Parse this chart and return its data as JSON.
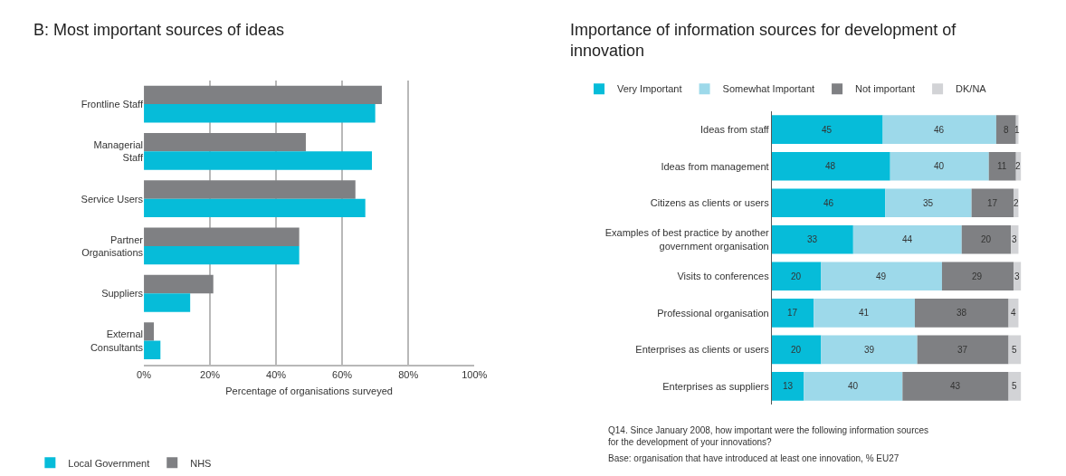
{
  "chart_data": [
    {
      "type": "bar",
      "orientation": "horizontal",
      "title": "B: Most important sources of ideas",
      "categories": [
        "Frontline Staff",
        "Managerial Staff",
        "Service Users",
        "Partner Organisations",
        "Suppliers",
        "External Consultants"
      ],
      "series": [
        {
          "name": "Local Government",
          "color": "#06bcd9",
          "values": [
            70,
            69,
            67,
            47,
            14,
            5
          ]
        },
        {
          "name": "NHS",
          "color": "#7f8083",
          "values": [
            72,
            49,
            64,
            47,
            21,
            3
          ]
        }
      ],
      "xlim": [
        0,
        100
      ],
      "xticks": [
        {
          "value": 0,
          "label": "0%"
        },
        {
          "value": 20,
          "label": "20%"
        },
        {
          "value": 40,
          "label": "40%"
        },
        {
          "value": 60,
          "label": "60%"
        },
        {
          "value": 80,
          "label": "80%"
        },
        {
          "value": 100,
          "label": "100%"
        }
      ],
      "xlabel": "Percentage of organisations surveyed",
      "grid": "x",
      "legend": "bottom"
    },
    {
      "type": "bar",
      "orientation": "horizontal",
      "stacked": true,
      "data_labels": true,
      "tick_labels": "y",
      "title": "Importance of information sources for development of innovation",
      "categories": [
        "Ideas from staff",
        "Ideas from management",
        "Citizens as clients or users",
        "Examples of best practice by another government organisation",
        "Visits to conferences",
        "Professional organisation",
        "Enterprises as clients or users",
        "Enterprises as suppliers"
      ],
      "series": [
        {
          "name": "Very Important",
          "color": "#06bcd9",
          "values": [
            45,
            48,
            46,
            33,
            20,
            17,
            20,
            13
          ]
        },
        {
          "name": "Somewhat Important",
          "color": "#9dd9ea",
          "values": [
            46,
            40,
            35,
            44,
            49,
            41,
            39,
            40
          ]
        },
        {
          "name": "Not important",
          "color": "#7f8083",
          "values": [
            8,
            11,
            17,
            20,
            29,
            38,
            37,
            43
          ]
        },
        {
          "name": "DK/NA",
          "color": "#d2d3d6",
          "values": [
            1,
            2,
            2,
            3,
            3,
            4,
            5,
            5
          ]
        }
      ],
      "grid": false,
      "legend": "top",
      "annotations": [
        "Q14. Since January 2008, how important were the following information sources for the development of your innovations?",
        "Base: organisation that have introduced at least one innovation, % EU27"
      ]
    }
  ]
}
